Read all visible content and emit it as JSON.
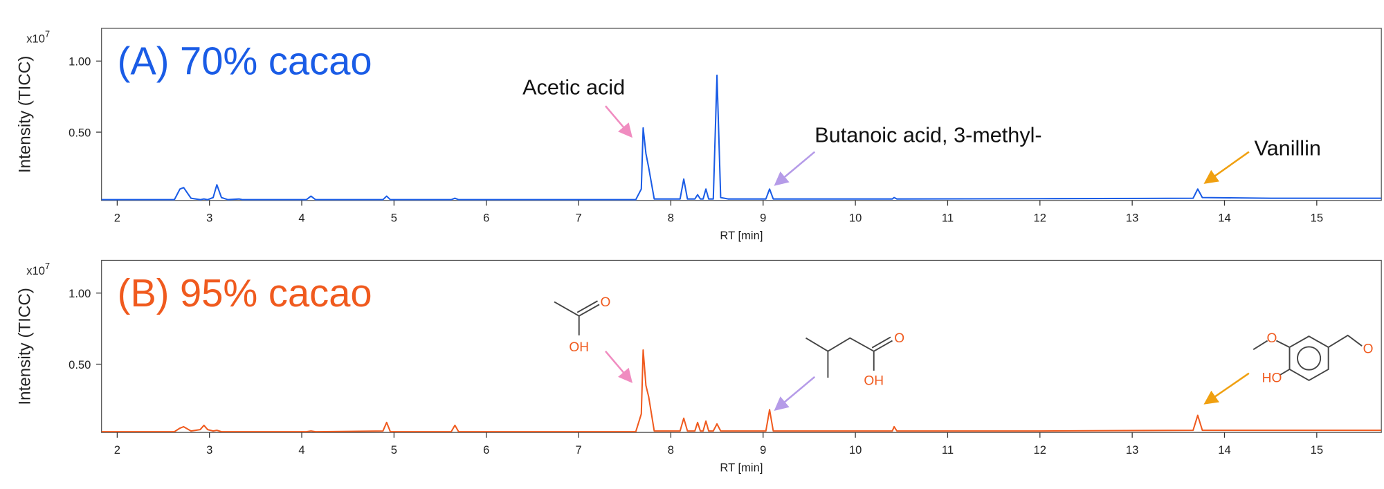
{
  "chart_data": [
    {
      "type": "line",
      "title": "(A) 70% cacao",
      "color": "#1a5ce6",
      "xlabel": "RT [min]",
      "ylabel": "Intensity (TICC)",
      "y_scale_base": "x10",
      "y_scale_exponent": "7",
      "xlim": [
        1.83,
        15.7
      ],
      "xticks": [
        2,
        3,
        4,
        5,
        6,
        7,
        8,
        9,
        10,
        11,
        12,
        13,
        14,
        15
      ],
      "ylim": [
        0.02,
        1.23
      ],
      "yticks": [
        {
          "value": 0.5,
          "label": "0.50"
        },
        {
          "value": 1.0,
          "label": "1.00"
        }
      ],
      "annotations": [
        "Acetic acid",
        "Butanoic acid, 3-methyl-",
        "Vanillin"
      ],
      "x": [
        1.83,
        2.62,
        2.68,
        2.72,
        2.8,
        2.9,
        2.94,
        2.98,
        3.04,
        3.08,
        3.13,
        3.2,
        3.32,
        3.36,
        4.05,
        4.1,
        4.15,
        4.88,
        4.92,
        4.96,
        5.62,
        5.66,
        5.7,
        7.62,
        7.68,
        7.7,
        7.73,
        7.76,
        7.82,
        8.1,
        8.14,
        8.18,
        8.26,
        8.29,
        8.32,
        8.35,
        8.38,
        8.41,
        8.46,
        8.5,
        8.54,
        8.62,
        9.03,
        9.07,
        9.11,
        10.4,
        10.42,
        10.45,
        12,
        13.66,
        13.71,
        13.76,
        14.5,
        15.7
      ],
      "values": [
        0.025,
        0.025,
        0.1,
        0.11,
        0.035,
        0.025,
        0.03,
        0.025,
        0.04,
        0.13,
        0.04,
        0.025,
        0.03,
        0.025,
        0.025,
        0.05,
        0.025,
        0.025,
        0.05,
        0.025,
        0.025,
        0.035,
        0.025,
        0.025,
        0.1,
        0.53,
        0.35,
        0.25,
        0.03,
        0.03,
        0.17,
        0.03,
        0.03,
        0.06,
        0.03,
        0.03,
        0.1,
        0.03,
        0.03,
        0.9,
        0.04,
        0.03,
        0.03,
        0.1,
        0.03,
        0.03,
        0.04,
        0.03,
        0.032,
        0.035,
        0.1,
        0.04,
        0.035,
        0.035
      ]
    },
    {
      "type": "line",
      "title": "(B) 95% cacao",
      "color": "#f05a1e",
      "xlabel": "RT [min]",
      "ylabel": "Intensity (TICC)",
      "y_scale_base": "x10",
      "y_scale_exponent": "7",
      "xlim": [
        1.83,
        15.7
      ],
      "xticks": [
        2,
        3,
        4,
        5,
        6,
        7,
        8,
        9,
        10,
        11,
        12,
        13,
        14,
        15
      ],
      "ylim": [
        0.02,
        1.23
      ],
      "yticks": [
        {
          "value": 0.5,
          "label": "0.50"
        },
        {
          "value": 1.0,
          "label": "1.00"
        }
      ],
      "structure_labels": [
        "O",
        "OH",
        "O",
        "OH",
        "O",
        "HO",
        "O"
      ],
      "x": [
        1.83,
        2.62,
        2.68,
        2.72,
        2.8,
        2.9,
        2.94,
        2.98,
        3.04,
        3.08,
        3.13,
        3.2,
        3.32,
        3.36,
        4.05,
        4.1,
        4.15,
        4.88,
        4.92,
        4.96,
        5.62,
        5.66,
        5.7,
        7.62,
        7.68,
        7.7,
        7.73,
        7.76,
        7.82,
        8.1,
        8.14,
        8.18,
        8.26,
        8.29,
        8.32,
        8.35,
        8.38,
        8.41,
        8.46,
        8.5,
        8.54,
        8.62,
        9.03,
        9.07,
        9.11,
        10.4,
        10.42,
        10.45,
        12,
        13.66,
        13.71,
        13.76,
        14.5,
        15.7
      ],
      "values": [
        0.025,
        0.025,
        0.05,
        0.06,
        0.03,
        0.04,
        0.07,
        0.04,
        0.03,
        0.035,
        0.025,
        0.025,
        0.025,
        0.025,
        0.025,
        0.03,
        0.025,
        0.03,
        0.09,
        0.025,
        0.025,
        0.07,
        0.025,
        0.025,
        0.15,
        0.6,
        0.35,
        0.27,
        0.03,
        0.03,
        0.12,
        0.03,
        0.03,
        0.09,
        0.03,
        0.03,
        0.1,
        0.03,
        0.03,
        0.08,
        0.03,
        0.03,
        0.03,
        0.18,
        0.03,
        0.03,
        0.06,
        0.03,
        0.03,
        0.035,
        0.14,
        0.035,
        0.035,
        0.035
      ]
    }
  ]
}
